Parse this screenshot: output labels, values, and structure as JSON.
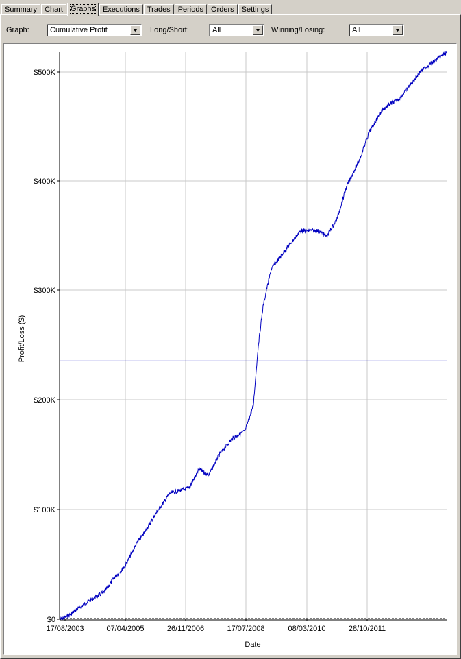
{
  "tabs": [
    {
      "label": "Summary",
      "active": false
    },
    {
      "label": "Chart",
      "active": false
    },
    {
      "label": "Graphs",
      "active": true
    },
    {
      "label": "Executions",
      "active": false
    },
    {
      "label": "Trades",
      "active": false
    },
    {
      "label": "Periods",
      "active": false
    },
    {
      "label": "Orders",
      "active": false
    },
    {
      "label": "Settings",
      "active": false
    }
  ],
  "filters": {
    "graph_label": "Graph:",
    "graph_value": "Cumulative Profit",
    "longshort_label": "Long/Short:",
    "longshort_value": "All",
    "winlose_label": "Winning/Losing:",
    "winlose_value": "All"
  },
  "colors": {
    "series": "#0000c0",
    "average_line": "#0000c0",
    "grid": "#c8c8c8"
  },
  "chart_data": {
    "type": "line",
    "xlabel": "Date",
    "ylabel": "Profit/Loss ($)",
    "x_tick_labels": [
      "17/08/2003",
      "07/04/2005",
      "26/11/2006",
      "17/07/2008",
      "08/03/2010",
      "28/10/2011"
    ],
    "y_tick_labels": [
      "$0",
      "$100K",
      "$200K",
      "$300K",
      "$400K",
      "$500K"
    ],
    "y_ticks": [
      0,
      100000,
      200000,
      300000,
      400000,
      500000
    ],
    "ylim": [
      0,
      520000
    ],
    "xlim": [
      "2003-08-17",
      "2013-06-20"
    ],
    "grid": true,
    "series": [
      {
        "type": "line",
        "x": [
          "2003-08-17",
          "2003-11-01",
          "2004-02-01",
          "2004-06-01",
          "2004-10-01",
          "2005-01-01",
          "2005-04-07",
          "2005-08-01",
          "2005-10-01",
          "2006-02-01",
          "2006-06-01",
          "2006-11-26",
          "2007-03-01",
          "2007-06-01",
          "2007-09-01",
          "2008-01-01",
          "2008-05-01",
          "2008-07-17",
          "2008-09-01",
          "2008-10-15",
          "2008-11-15",
          "2009-01-01",
          "2009-03-01",
          "2009-06-01",
          "2009-10-01",
          "2010-03-08",
          "2010-06-01",
          "2010-09-01",
          "2010-12-01",
          "2011-04-01",
          "2011-07-01",
          "2011-10-28",
          "2012-01-01",
          "2012-04-01",
          "2012-08-01",
          "2012-10-15",
          "2012-12-15",
          "2013-03-01",
          "2013-06-20"
        ],
        "y": [
          0,
          3000,
          10000,
          18000,
          25000,
          38000,
          48000,
          70000,
          78000,
          98000,
          115000,
          120000,
          137000,
          132000,
          150000,
          165000,
          172000,
          195000,
          250000,
          285000,
          300000,
          320000,
          328000,
          340000,
          355000,
          355000,
          350000,
          365000,
          395000,
          420000,
          445000,
          465000,
          470000,
          475000,
          490000,
          500000,
          505000,
          510000,
          518000
        ]
      },
      {
        "type": "hline",
        "name": "",
        "y": 236000
      }
    ]
  }
}
